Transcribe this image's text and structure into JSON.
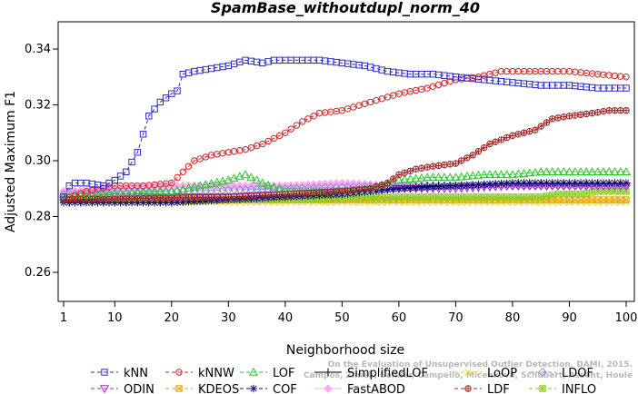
{
  "chart_data": {
    "type": "line",
    "title": "SpamBase_withoutdupl_norm_40",
    "xlabel": "Neighborhood size",
    "ylabel": "Adjusted Maximum F1",
    "xlim": [
      1,
      100
    ],
    "ylim": [
      0.25,
      0.345
    ],
    "x_ticks": [
      1,
      10,
      20,
      30,
      40,
      50,
      60,
      70,
      80,
      90,
      100
    ],
    "y_ticks": [
      0.26,
      0.28,
      0.3,
      0.32,
      0.34
    ],
    "y_tick_labels": [
      "0.26",
      "0.28",
      "0.30",
      "0.32",
      "0.34"
    ],
    "grid": false,
    "legend_position": "bottom",
    "series": [
      {
        "name": "kNN",
        "color": "#2a2ad4",
        "marker": "square",
        "dash": true,
        "points": [
          [
            1,
            0.287
          ],
          [
            2,
            0.291
          ],
          [
            3,
            0.292
          ],
          [
            5,
            0.292
          ],
          [
            8,
            0.291
          ],
          [
            10,
            0.293
          ],
          [
            12,
            0.296
          ],
          [
            14,
            0.303
          ],
          [
            16,
            0.316
          ],
          [
            18,
            0.321
          ],
          [
            20,
            0.324
          ],
          [
            21,
            0.325
          ],
          [
            22,
            0.331
          ],
          [
            24,
            0.332
          ],
          [
            27,
            0.333
          ],
          [
            30,
            0.334
          ],
          [
            33,
            0.336
          ],
          [
            36,
            0.335
          ],
          [
            38,
            0.336
          ],
          [
            42,
            0.336
          ],
          [
            46,
            0.336
          ],
          [
            50,
            0.335
          ],
          [
            54,
            0.334
          ],
          [
            58,
            0.332
          ],
          [
            62,
            0.331
          ],
          [
            66,
            0.331
          ],
          [
            70,
            0.33
          ],
          [
            75,
            0.329
          ],
          [
            80,
            0.328
          ],
          [
            85,
            0.327
          ],
          [
            90,
            0.327
          ],
          [
            95,
            0.326
          ],
          [
            100,
            0.326
          ]
        ]
      },
      {
        "name": "kNNW",
        "color": "#dd2020",
        "marker": "circle",
        "dash": true,
        "points": [
          [
            1,
            0.286
          ],
          [
            5,
            0.289
          ],
          [
            10,
            0.291
          ],
          [
            15,
            0.291
          ],
          [
            20,
            0.292
          ],
          [
            22,
            0.296
          ],
          [
            24,
            0.3
          ],
          [
            27,
            0.302
          ],
          [
            30,
            0.303
          ],
          [
            33,
            0.304
          ],
          [
            36,
            0.306
          ],
          [
            40,
            0.31
          ],
          [
            43,
            0.314
          ],
          [
            46,
            0.317
          ],
          [
            50,
            0.318
          ],
          [
            55,
            0.321
          ],
          [
            60,
            0.324
          ],
          [
            65,
            0.326
          ],
          [
            70,
            0.329
          ],
          [
            74,
            0.33
          ],
          [
            78,
            0.332
          ],
          [
            85,
            0.332
          ],
          [
            90,
            0.332
          ],
          [
            95,
            0.331
          ],
          [
            100,
            0.33
          ]
        ]
      },
      {
        "name": "LOF",
        "color": "#22cc22",
        "marker": "triangle-up",
        "dash": true,
        "points": [
          [
            1,
            0.287
          ],
          [
            10,
            0.288
          ],
          [
            20,
            0.289
          ],
          [
            25,
            0.291
          ],
          [
            30,
            0.293
          ],
          [
            33,
            0.295
          ],
          [
            36,
            0.292
          ],
          [
            40,
            0.289
          ],
          [
            45,
            0.289
          ],
          [
            50,
            0.289
          ],
          [
            55,
            0.29
          ],
          [
            60,
            0.293
          ],
          [
            65,
            0.294
          ],
          [
            70,
            0.294
          ],
          [
            75,
            0.295
          ],
          [
            80,
            0.295
          ],
          [
            85,
            0.296
          ],
          [
            90,
            0.296
          ],
          [
            95,
            0.296
          ],
          [
            100,
            0.296
          ]
        ]
      },
      {
        "name": "SimplifiedLOF",
        "color": "#000000",
        "marker": "plus",
        "dash": false,
        "points": [
          [
            1,
            0.285
          ],
          [
            10,
            0.285
          ],
          [
            20,
            0.285
          ],
          [
            30,
            0.286
          ],
          [
            40,
            0.287
          ],
          [
            50,
            0.288
          ],
          [
            55,
            0.289
          ],
          [
            60,
            0.29
          ],
          [
            65,
            0.291
          ],
          [
            70,
            0.291
          ],
          [
            80,
            0.292
          ],
          [
            90,
            0.292
          ],
          [
            100,
            0.292
          ]
        ]
      },
      {
        "name": "LoOP",
        "color": "#e8d000",
        "marker": "x",
        "dash": true,
        "points": [
          [
            1,
            0.285
          ],
          [
            20,
            0.285
          ],
          [
            40,
            0.285
          ],
          [
            60,
            0.285
          ],
          [
            80,
            0.285
          ],
          [
            100,
            0.285
          ]
        ]
      },
      {
        "name": "LDOF",
        "color": "#8888dd",
        "marker": "diamond",
        "dash": true,
        "points": [
          [
            1,
            0.288
          ],
          [
            20,
            0.289
          ],
          [
            40,
            0.29
          ],
          [
            60,
            0.291
          ],
          [
            80,
            0.291
          ],
          [
            100,
            0.291
          ]
        ]
      },
      {
        "name": "ODIN",
        "color": "#aa22cc",
        "marker": "triangle-down",
        "dash": true,
        "points": [
          [
            1,
            0.286
          ],
          [
            10,
            0.287
          ],
          [
            20,
            0.287
          ],
          [
            30,
            0.287
          ],
          [
            40,
            0.288
          ],
          [
            50,
            0.289
          ],
          [
            60,
            0.29
          ],
          [
            70,
            0.29
          ],
          [
            80,
            0.291
          ],
          [
            90,
            0.291
          ],
          [
            100,
            0.291
          ]
        ]
      },
      {
        "name": "KDEOS",
        "color": "#f0a000",
        "marker": "square-x",
        "dash": true,
        "points": [
          [
            1,
            0.286
          ],
          [
            20,
            0.286
          ],
          [
            40,
            0.286
          ],
          [
            60,
            0.286
          ],
          [
            80,
            0.286
          ],
          [
            100,
            0.286
          ]
        ]
      },
      {
        "name": "COF",
        "color": "#0c0c80",
        "marker": "star",
        "dash": true,
        "points": [
          [
            1,
            0.285
          ],
          [
            10,
            0.285
          ],
          [
            20,
            0.285
          ],
          [
            30,
            0.286
          ],
          [
            40,
            0.287
          ],
          [
            50,
            0.288
          ],
          [
            60,
            0.29
          ],
          [
            70,
            0.291
          ],
          [
            80,
            0.292
          ],
          [
            90,
            0.292
          ],
          [
            100,
            0.292
          ]
        ]
      },
      {
        "name": "FastABOD",
        "color": "#ffaaee",
        "marker": "diamond-filled",
        "dash": false,
        "points": [
          [
            1,
            0.289
          ],
          [
            10,
            0.29
          ],
          [
            20,
            0.291
          ],
          [
            30,
            0.291
          ],
          [
            40,
            0.291
          ],
          [
            50,
            0.292
          ],
          [
            60,
            0.291
          ],
          [
            70,
            0.291
          ],
          [
            80,
            0.291
          ],
          [
            90,
            0.291
          ],
          [
            100,
            0.291
          ]
        ]
      },
      {
        "name": "LDF",
        "color": "#a02020",
        "marker": "circle-plus",
        "dash": true,
        "points": [
          [
            1,
            0.286
          ],
          [
            30,
            0.287
          ],
          [
            40,
            0.288
          ],
          [
            50,
            0.289
          ],
          [
            55,
            0.29
          ],
          [
            58,
            0.292
          ],
          [
            60,
            0.295
          ],
          [
            63,
            0.297
          ],
          [
            66,
            0.298
          ],
          [
            70,
            0.299
          ],
          [
            73,
            0.302
          ],
          [
            76,
            0.306
          ],
          [
            80,
            0.309
          ],
          [
            84,
            0.311
          ],
          [
            87,
            0.315
          ],
          [
            90,
            0.316
          ],
          [
            94,
            0.317
          ],
          [
            97,
            0.318
          ],
          [
            100,
            0.318
          ]
        ]
      },
      {
        "name": "INFLO",
        "color": "#88cc22",
        "marker": "square-star",
        "dash": true,
        "points": [
          [
            1,
            0.286
          ],
          [
            20,
            0.286
          ],
          [
            40,
            0.286
          ],
          [
            60,
            0.287
          ],
          [
            70,
            0.287
          ],
          [
            80,
            0.287
          ],
          [
            85,
            0.287
          ],
          [
            88,
            0.288
          ],
          [
            92,
            0.288
          ],
          [
            95,
            0.289
          ],
          [
            100,
            0.289
          ]
        ]
      }
    ]
  },
  "watermark": {
    "line1": "Campos, Zimek, Sander, Campello, Micenková, Schubert, Assent, Houle",
    "line2": "On the Evaluation of Unsupervised Outlier Detection. DAMI, 2015."
  }
}
